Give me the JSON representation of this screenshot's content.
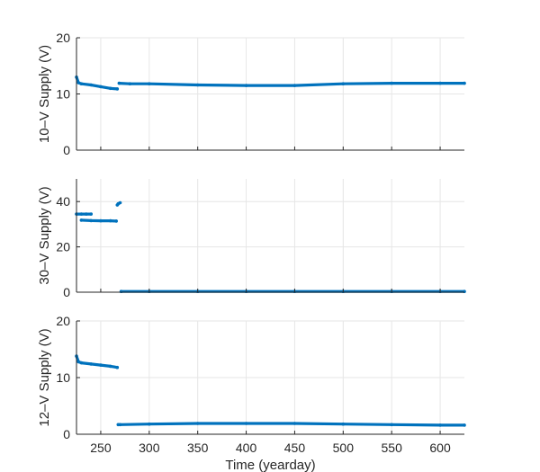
{
  "chart_data": [
    {
      "type": "scatter",
      "ylabel": "10–V Supply (V)",
      "xlim": [
        225,
        625
      ],
      "ylim": [
        0,
        20
      ],
      "yticks": [
        "0",
        "10",
        "20"
      ],
      "grid": true,
      "color": "#0072BD",
      "series": [
        {
          "x": [
            225,
            227,
            230,
            240,
            250,
            260,
            267
          ],
          "y": [
            13.0,
            12.0,
            11.8,
            11.6,
            11.3,
            11.0,
            10.9
          ]
        },
        {
          "x": [
            269,
            280,
            300,
            350,
            400,
            450,
            500,
            550,
            600,
            625
          ],
          "y": [
            11.9,
            11.8,
            11.8,
            11.6,
            11.5,
            11.5,
            11.8,
            11.9,
            11.9,
            11.9
          ]
        }
      ]
    },
    {
      "type": "scatter",
      "ylabel": "30–V Supply (V)",
      "xlim": [
        225,
        625
      ],
      "ylim": [
        0,
        50
      ],
      "yticks": [
        "0",
        "20",
        "40"
      ],
      "grid": true,
      "color": "#0072BD",
      "series": [
        {
          "x": [
            225,
            230,
            235,
            240
          ],
          "y": [
            34.5,
            34.5,
            34.5,
            34.5
          ]
        },
        {
          "x": [
            230,
            240,
            250,
            260,
            266
          ],
          "y": [
            31.8,
            31.6,
            31.5,
            31.5,
            31.4
          ]
        },
        {
          "x": [
            267,
            268,
            270
          ],
          "y": [
            38.5,
            39.0,
            39.5
          ]
        },
        {
          "x": [
            271,
            300,
            350,
            400,
            450,
            500,
            550,
            600,
            625
          ],
          "y": [
            0.3,
            0.3,
            0.3,
            0.3,
            0.3,
            0.3,
            0.3,
            0.3,
            0.3
          ]
        }
      ]
    },
    {
      "type": "scatter",
      "ylabel": "12–V Supply (V)",
      "xlabel": "Time (yearday)",
      "xlim": [
        225,
        625
      ],
      "ylim": [
        0,
        20
      ],
      "yticks": [
        "0",
        "10",
        "20"
      ],
      "xticks": [
        "250",
        "300",
        "350",
        "400",
        "450",
        "500",
        "550",
        "600"
      ],
      "grid": true,
      "color": "#0072BD",
      "series": [
        {
          "x": [
            225,
            227,
            230,
            240,
            250,
            260,
            267
          ],
          "y": [
            13.8,
            12.8,
            12.6,
            12.4,
            12.2,
            12.0,
            11.8
          ]
        },
        {
          "x": [
            268,
            270,
            300,
            350,
            400,
            450,
            500,
            550,
            600,
            625
          ],
          "y": [
            1.7,
            1.7,
            1.8,
            1.9,
            1.9,
            1.9,
            1.8,
            1.7,
            1.6,
            1.6
          ]
        }
      ]
    }
  ]
}
